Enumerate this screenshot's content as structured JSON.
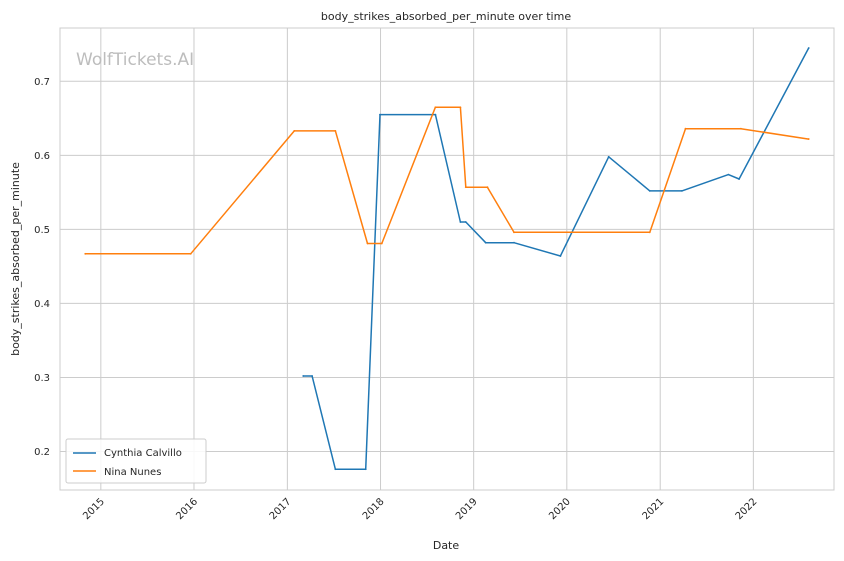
{
  "chart_data": {
    "type": "line",
    "title": "body_strikes_absorbed_per_minute over time",
    "xlabel": "Date",
    "ylabel": "body_strikes_absorbed_per_minute",
    "watermark": "WolfTickets.AI",
    "x_ticks": [
      "2015",
      "2016",
      "2017",
      "2018",
      "2019",
      "2020",
      "2021",
      "2022"
    ],
    "y_ticks": [
      "0.2",
      "0.3",
      "0.4",
      "0.5",
      "0.6",
      "0.7"
    ],
    "xlim": [
      "2014-07-25",
      "2022-11-13"
    ],
    "ylim": [
      0.148,
      0.772
    ],
    "grid": true,
    "legend_position": "lower-left",
    "series": [
      {
        "name": "Cynthia Calvillo",
        "color": "#1f77b4",
        "points": [
          [
            "2017-03-04",
            0.302
          ],
          [
            "2017-04-08",
            0.302
          ],
          [
            "2017-07-08",
            0.176
          ],
          [
            "2017-11-04",
            0.176
          ],
          [
            "2017-12-30",
            0.655
          ],
          [
            "2018-08-04",
            0.655
          ],
          [
            "2018-11-10",
            0.51
          ],
          [
            "2018-12-01",
            0.51
          ],
          [
            "2019-02-17",
            0.482
          ],
          [
            "2019-06-08",
            0.482
          ],
          [
            "2019-12-07",
            0.464
          ],
          [
            "2020-06-13",
            0.598
          ],
          [
            "2020-11-21",
            0.552
          ],
          [
            "2021-03-27",
            0.552
          ],
          [
            "2021-09-25",
            0.574
          ],
          [
            "2021-11-06",
            0.568
          ],
          [
            "2022-08-06",
            0.745
          ]
        ]
      },
      {
        "name": "Nina Nunes",
        "color": "#ff7f0e",
        "points": [
          [
            "2014-11-01",
            0.467
          ],
          [
            "2015-12-19",
            0.467
          ],
          [
            "2017-01-28",
            0.633
          ],
          [
            "2017-07-08",
            0.633
          ],
          [
            "2017-11-11",
            0.481
          ],
          [
            "2018-01-06",
            0.481
          ],
          [
            "2018-08-04",
            0.665
          ],
          [
            "2018-11-10",
            0.665
          ],
          [
            "2018-12-01",
            0.557
          ],
          [
            "2019-02-24",
            0.557
          ],
          [
            "2019-06-08",
            0.496
          ],
          [
            "2020-11-21",
            0.496
          ],
          [
            "2021-04-10",
            0.636
          ],
          [
            "2021-11-13",
            0.636
          ],
          [
            "2022-08-06",
            0.622
          ]
        ]
      }
    ]
  }
}
